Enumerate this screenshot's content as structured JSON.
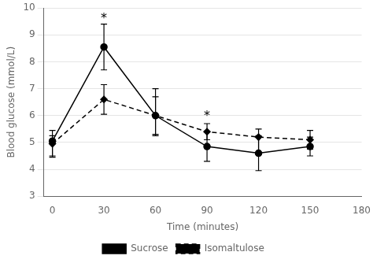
{
  "chart_data": {
    "type": "line",
    "xlabel": "Time (minutes)",
    "ylabel": "Blood glucose (mmol/L)",
    "x": [
      0,
      30,
      60,
      90,
      120,
      150
    ],
    "series": [
      {
        "name": "Sucrose",
        "color": "black",
        "marker": "circle",
        "line_style": "solid",
        "values": [
          5.05,
          8.55,
          6.0,
          4.85,
          4.6,
          4.85
        ],
        "err_low": [
          0.55,
          0.85,
          0.7,
          0.55,
          0.65,
          0.35
        ],
        "err_high": [
          0.2,
          0.85,
          0.7,
          0.55,
          0.65,
          0.35
        ]
      },
      {
        "name": "Isomaltulose",
        "color": "black",
        "marker": "diamond",
        "line_style": "dashed",
        "values": [
          4.95,
          6.6,
          6.0,
          5.4,
          5.2,
          5.1
        ],
        "err_low": [
          0.5,
          0.55,
          0.75,
          0.3,
          0.65,
          0.35
        ],
        "err_high": [
          0.5,
          0.55,
          1.0,
          0.3,
          0.3,
          0.35
        ]
      }
    ],
    "annotations": [
      {
        "x": 30,
        "y": 9.55,
        "text": "*"
      },
      {
        "x": 90,
        "y": 5.9,
        "text": "*"
      }
    ],
    "xlim": [
      -5,
      180
    ],
    "xticks": [
      0,
      30,
      60,
      90,
      120,
      150,
      180
    ],
    "ylim": [
      3,
      10
    ],
    "yticks": [
      3,
      4,
      5,
      6,
      7,
      8,
      9,
      10
    ],
    "grid": "y",
    "legend": "bottom"
  }
}
